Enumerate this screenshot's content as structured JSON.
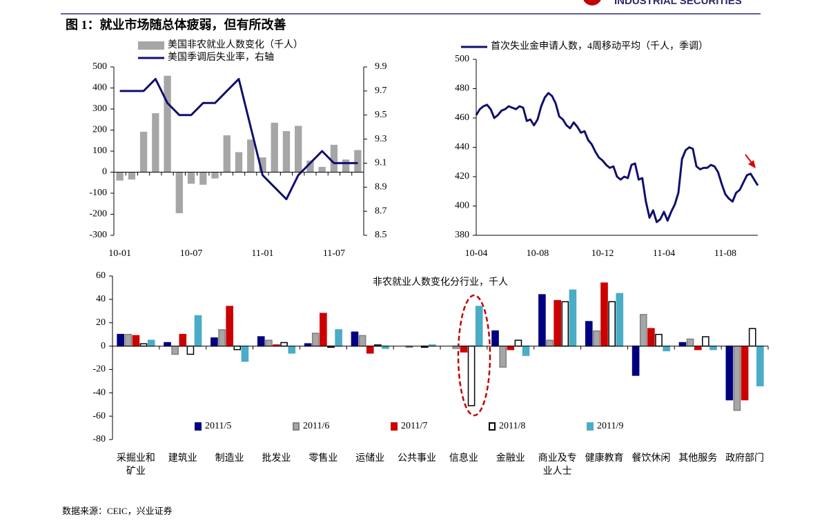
{
  "header": {
    "logo_text": "INDUSTRIAL SECURITIES",
    "title": "图 1：就业市场随总体疲弱，但有所改善"
  },
  "chart_data": [
    {
      "type": "bar",
      "legend": "top",
      "categories": [
        "10-01",
        null,
        null,
        null,
        null,
        null,
        "10-07",
        null,
        null,
        null,
        null,
        null,
        "11-01",
        null,
        null,
        null,
        null,
        null,
        "11-07",
        null,
        null
      ],
      "series": [
        {
          "name": "美国非农就业人数变化（千人）",
          "type": "bar",
          "color": "#a6a6a6",
          "values": [
            -40,
            -35,
            192,
            280,
            458,
            -195,
            -55,
            -60,
            -30,
            175,
            95,
            155,
            70,
            235,
            195,
            220,
            55,
            25,
            130,
            60,
            105
          ]
        },
        {
          "name": "美国季调后失业率，右轴",
          "type": "line",
          "axis": "y2",
          "color": "#0f0f6e",
          "values": [
            9.7,
            9.7,
            9.7,
            9.8,
            9.6,
            9.5,
            9.5,
            9.6,
            9.6,
            9.7,
            9.8,
            9.4,
            9.0,
            8.9,
            8.8,
            9.0,
            9.1,
            9.2,
            9.1,
            9.1,
            9.1
          ]
        }
      ],
      "ylim": [
        -300,
        500
      ],
      "yticks": [
        -300,
        -200,
        -100,
        0,
        100,
        200,
        300,
        400,
        500
      ],
      "y2lim": [
        8.5,
        9.9
      ],
      "y2ticks": [
        8.5,
        8.7,
        8.9,
        9.1,
        9.3,
        9.5,
        9.7,
        9.9
      ]
    },
    {
      "type": "line",
      "legend": "top",
      "categories": [
        "10-04",
        null,
        null,
        null,
        null,
        null,
        null,
        null,
        null,
        null,
        null,
        null,
        null,
        null,
        null,
        null,
        null,
        "10-08",
        null,
        null,
        null,
        null,
        null,
        null,
        null,
        null,
        null,
        null,
        null,
        null,
        null,
        null,
        null,
        null,
        null,
        "10-12",
        null,
        null,
        null,
        null,
        null,
        null,
        null,
        null,
        null,
        null,
        null,
        null,
        null,
        null,
        null,
        null,
        "11-04",
        null,
        null,
        null,
        null,
        null,
        null,
        null,
        null,
        null,
        null,
        null,
        null,
        null,
        null,
        null,
        null,
        "11-08",
        null,
        null,
        null,
        null,
        null,
        null,
        null,
        null,
        null
      ],
      "series": [
        {
          "name": "首次失业金申请人数，4周移动平均（千人，季调）",
          "color": "#0f0f6e",
          "values": [
            462,
            466,
            468,
            469,
            466,
            460,
            462,
            465,
            466,
            468,
            467,
            466,
            468,
            467,
            458,
            459,
            455,
            459,
            468,
            474,
            477,
            475,
            470,
            461,
            459,
            455,
            453,
            457,
            454,
            450,
            451,
            445,
            442,
            437,
            433,
            431,
            428,
            426,
            427,
            420,
            418,
            420,
            419,
            428,
            429,
            418,
            419,
            403,
            392,
            397,
            389,
            391,
            396,
            390,
            396,
            401,
            409,
            432,
            438,
            440,
            439,
            427,
            425,
            426,
            426,
            428,
            427,
            423,
            415,
            408,
            405,
            403,
            409,
            411,
            416,
            421,
            422,
            418,
            414
          ]
        }
      ],
      "ylim": [
        380,
        500
      ],
      "yticks": [
        380,
        400,
        420,
        440,
        460,
        480,
        500
      ]
    },
    {
      "type": "bar",
      "legend": "bottom",
      "title": "非农就业人数变化分行业，千人",
      "categories": [
        "采掘业和矿业",
        "建筑业",
        "制造业",
        "批发业",
        "零售业",
        "运储业",
        "公共事业",
        "信息业",
        "金融业",
        "商业及专业人士",
        "健康教育",
        "餐饮休闲",
        "其他服务",
        "政府部门"
      ],
      "series": [
        {
          "name": "2011/5",
          "color": "#000080",
          "edgecolor": "#000080",
          "values": [
            10,
            3,
            7,
            8,
            2,
            12,
            0,
            0,
            13,
            44,
            21,
            -25,
            3,
            -46
          ]
        },
        {
          "name": "2011/6",
          "color": "#a6a6a6",
          "edgecolor": "#7f7f7f",
          "values": [
            10,
            -7,
            14,
            5,
            11,
            9,
            -1,
            -2,
            -18,
            5,
            13,
            27,
            6,
            -55
          ]
        },
        {
          "name": "2011/7",
          "color": "#cc0000",
          "edgecolor": "#cc0000",
          "values": [
            9,
            10,
            34,
            1,
            28,
            -6,
            0,
            -5,
            -3,
            39,
            54,
            15,
            -3,
            -46
          ]
        },
        {
          "name": "2011/8",
          "color": "#ffffff",
          "edgecolor": "#000000",
          "values": [
            2,
            -7,
            -3,
            3,
            -1,
            1,
            -1,
            -51,
            5,
            38,
            38,
            10,
            8,
            15
          ]
        },
        {
          "name": "2011/9",
          "color": "#4bacc6",
          "edgecolor": "#4bacc6",
          "values": [
            5,
            26,
            -13,
            -6,
            14,
            -2,
            1,
            34,
            -8,
            48,
            45,
            -4,
            -3,
            -34
          ]
        }
      ],
      "ylim": [
        -80,
        60
      ],
      "yticks": [
        -80,
        -60,
        -40,
        -20,
        0,
        20,
        40,
        60
      ]
    }
  ],
  "source": "数据来源：CEIC，兴业证券"
}
